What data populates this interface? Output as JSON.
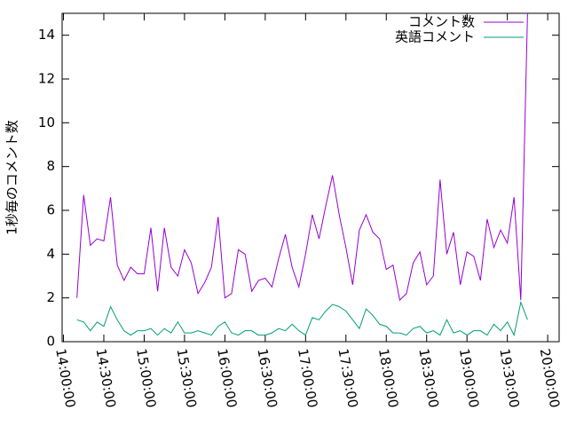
{
  "chart_data": {
    "type": "line",
    "ylabel": "1秒毎のコメント数",
    "x": [
      "14:10:00",
      "14:15:00",
      "14:20:00",
      "14:25:00",
      "14:30:00",
      "14:35:00",
      "14:40:00",
      "14:45:00",
      "14:50:00",
      "14:55:00",
      "15:00:00",
      "15:05:00",
      "15:10:00",
      "15:15:00",
      "15:20:00",
      "15:25:00",
      "15:30:00",
      "15:35:00",
      "15:40:00",
      "15:45:00",
      "15:50:00",
      "15:55:00",
      "16:00:00",
      "16:05:00",
      "16:10:00",
      "16:15:00",
      "16:20:00",
      "16:25:00",
      "16:30:00",
      "16:35:00",
      "16:40:00",
      "16:45:00",
      "16:50:00",
      "16:55:00",
      "17:00:00",
      "17:05:00",
      "17:10:00",
      "17:15:00",
      "17:20:00",
      "17:25:00",
      "17:30:00",
      "17:35:00",
      "17:40:00",
      "17:45:00",
      "17:50:00",
      "17:55:00",
      "18:00:00",
      "18:05:00",
      "18:10:00",
      "18:15:00",
      "18:20:00",
      "18:25:00",
      "18:30:00",
      "18:35:00",
      "18:40:00",
      "18:45:00",
      "18:50:00",
      "18:55:00",
      "19:00:00",
      "19:05:00",
      "19:10:00",
      "19:15:00",
      "19:20:00",
      "19:25:00",
      "19:30:00",
      "19:35:00",
      "19:40:00",
      "19:45:00"
    ],
    "series": [
      {
        "name": "コメント数",
        "color": "#9400d3",
        "values": [
          2.0,
          6.7,
          4.4,
          4.7,
          4.6,
          6.6,
          3.5,
          2.8,
          3.4,
          3.1,
          3.1,
          5.2,
          2.3,
          5.2,
          3.4,
          3.0,
          4.2,
          3.6,
          2.2,
          2.7,
          3.4,
          5.7,
          2.0,
          2.2,
          4.2,
          4.0,
          2.3,
          2.8,
          2.9,
          2.5,
          3.8,
          4.9,
          3.4,
          2.5,
          4.0,
          5.8,
          4.7,
          6.2,
          7.6,
          5.8,
          4.3,
          2.6,
          5.1,
          5.8,
          5.0,
          4.7,
          3.3,
          3.5,
          1.9,
          2.2,
          3.6,
          4.1,
          2.6,
          3.0,
          7.4,
          4.0,
          5.0,
          2.6,
          4.1,
          3.9,
          2.8,
          5.6,
          4.3,
          5.1,
          4.5,
          6.6,
          1.9,
          15.0
        ]
      },
      {
        "name": "英語コメント",
        "color": "#009e73",
        "values": [
          1.0,
          0.9,
          0.5,
          0.9,
          0.7,
          1.6,
          1.0,
          0.5,
          0.3,
          0.5,
          0.5,
          0.6,
          0.3,
          0.6,
          0.4,
          0.9,
          0.4,
          0.4,
          0.5,
          0.4,
          0.3,
          0.7,
          0.9,
          0.4,
          0.3,
          0.5,
          0.5,
          0.3,
          0.3,
          0.4,
          0.6,
          0.5,
          0.8,
          0.5,
          0.3,
          1.1,
          1.0,
          1.4,
          1.7,
          1.6,
          1.4,
          1.0,
          0.6,
          1.5,
          1.2,
          0.8,
          0.7,
          0.4,
          0.4,
          0.3,
          0.6,
          0.7,
          0.4,
          0.5,
          0.3,
          1.0,
          0.4,
          0.5,
          0.3,
          0.5,
          0.5,
          0.3,
          0.8,
          0.5,
          0.9,
          0.3,
          1.8,
          1.0
        ]
      }
    ],
    "xlim": [
      "13:59:00",
      "20:08:30"
    ],
    "xticks": [
      "14:00:00",
      "14:30:00",
      "15:00:00",
      "15:30:00",
      "16:00:00",
      "16:30:00",
      "17:00:00",
      "17:30:00",
      "18:00:00",
      "18:30:00",
      "19:00:00",
      "19:30:00",
      "20:00:00"
    ],
    "ylim": [
      0,
      15
    ],
    "yticks": [
      0,
      2,
      4,
      6,
      8,
      10,
      12,
      14
    ],
    "legend": "top-right"
  }
}
